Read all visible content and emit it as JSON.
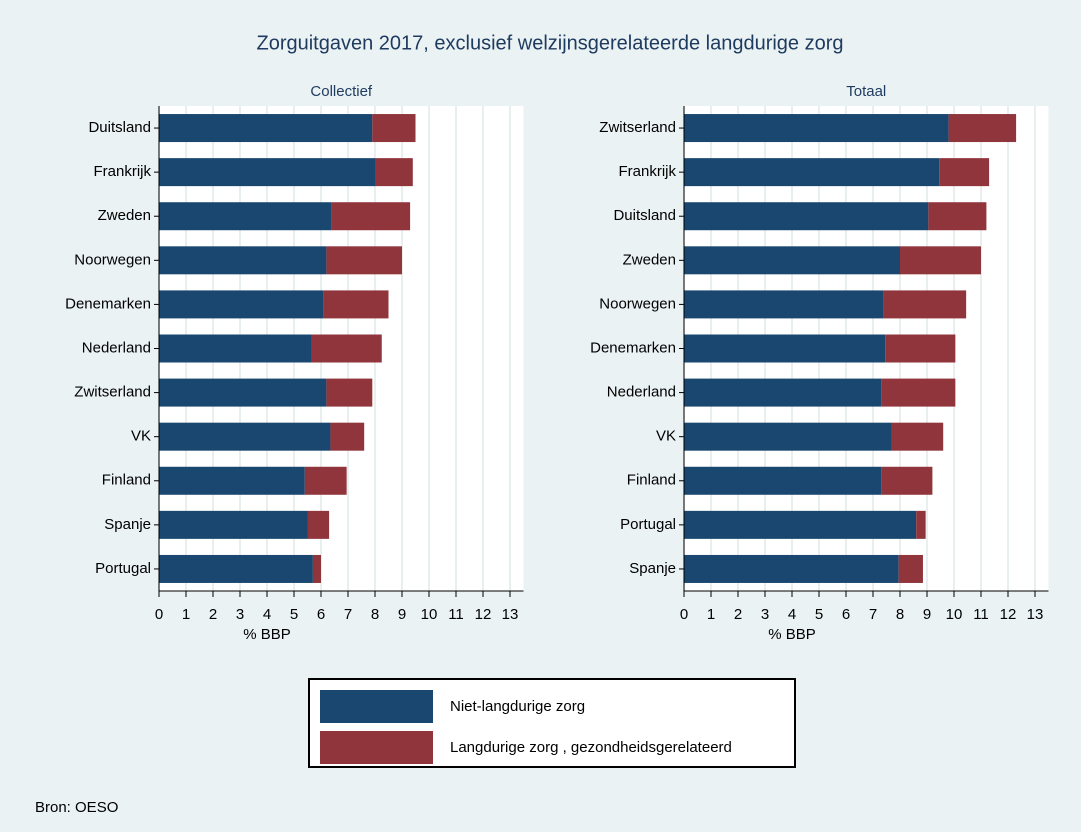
{
  "title": "Zorguitgaven 2017, exclusief welzijnsgerelateerde langdurige zorg",
  "source": "Bron: OESO",
  "chart_data": [
    {
      "type": "stacked-barh",
      "title": "Collectief",
      "xlabel": "% BBP",
      "categories": [
        "Duitsland",
        "Frankrijk",
        "Zweden",
        "Noorwegen",
        "Denemarken",
        "Nederland",
        "Zwitserland",
        "VK",
        "Finland",
        "Spanje",
        "Portugal"
      ],
      "series": [
        {
          "name": "Niet-langdurige zorg",
          "color": "#1a476f",
          "values": [
            7.9,
            8.0,
            6.4,
            6.2,
            6.1,
            5.65,
            6.2,
            6.35,
            5.4,
            5.5,
            5.7
          ]
        },
        {
          "name": "Langdurige zorg , gezondheidsgerelateerd",
          "color": "#90353b",
          "values": [
            1.6,
            1.4,
            2.9,
            2.8,
            2.4,
            2.6,
            1.7,
            1.25,
            1.55,
            0.8,
            0.3
          ]
        }
      ],
      "xlim": [
        0,
        13.5
      ],
      "xticks": [
        0,
        1,
        2,
        3,
        4,
        5,
        6,
        7,
        8,
        9,
        10,
        11,
        12,
        13
      ],
      "grid": true
    },
    {
      "type": "stacked-barh",
      "title": "Totaal",
      "xlabel": "% BBP",
      "categories": [
        "Zwitserland",
        "Frankrijk",
        "Duitsland",
        "Zweden",
        "Noorwegen",
        "Denemarken",
        "Nederland",
        "VK",
        "Finland",
        "Portugal",
        "Spanje"
      ],
      "series": [
        {
          "name": "Niet-langdurige zorg",
          "color": "#1a476f",
          "values": [
            9.8,
            9.45,
            9.05,
            8.0,
            7.4,
            7.45,
            7.3,
            7.7,
            7.3,
            8.6,
            7.95
          ]
        },
        {
          "name": "Langdurige zorg , gezondheidsgerelateerd",
          "color": "#90353b",
          "values": [
            2.5,
            1.85,
            2.15,
            3.0,
            3.05,
            2.6,
            2.75,
            1.9,
            1.9,
            0.35,
            0.9
          ]
        }
      ],
      "xlim": [
        0,
        13.5
      ],
      "xticks": [
        0,
        1,
        2,
        3,
        4,
        5,
        6,
        7,
        8,
        9,
        10,
        11,
        12,
        13
      ],
      "grid": true
    }
  ]
}
